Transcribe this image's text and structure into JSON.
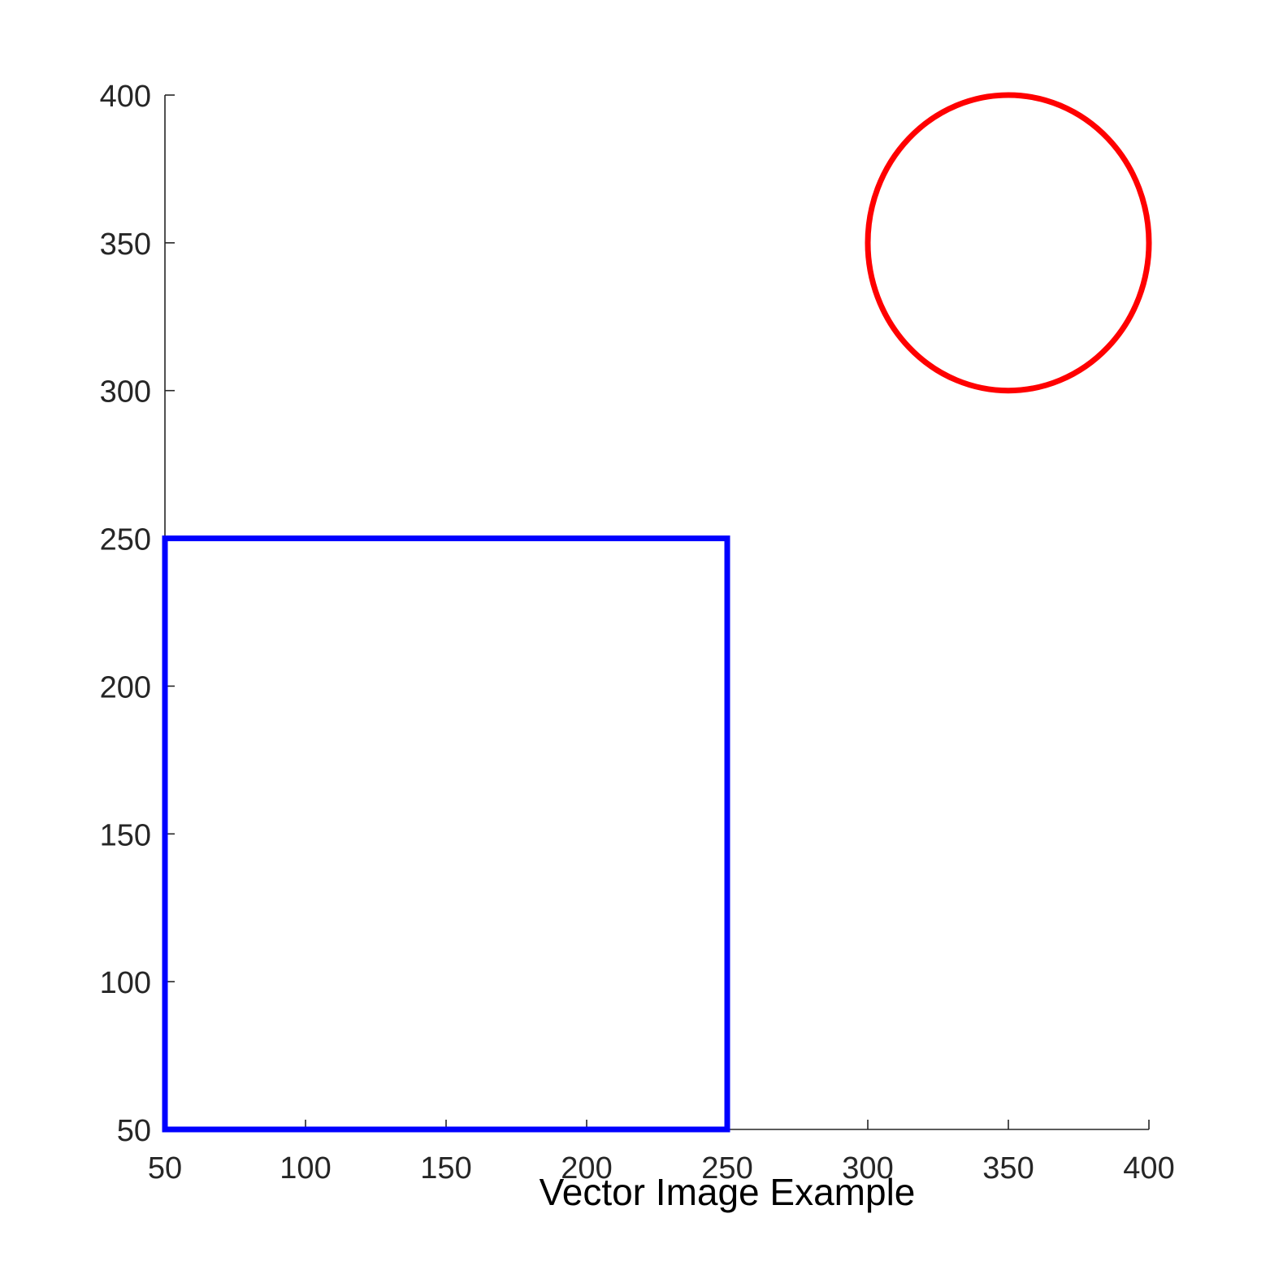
{
  "chart_data": {
    "type": "scatter",
    "title": "",
    "xlabel": "Vector Image Example",
    "ylabel": "",
    "xlim": [
      50,
      400
    ],
    "ylim": [
      50,
      400
    ],
    "x_ticks": [
      "50",
      "100",
      "150",
      "200",
      "250",
      "300",
      "350",
      "400"
    ],
    "y_ticks": [
      "50",
      "100",
      "150",
      "200",
      "250",
      "300",
      "350",
      "400"
    ],
    "grid": false,
    "axis_color": "#262626",
    "shapes": [
      {
        "kind": "rectangle",
        "x_min": 50,
        "y_min": 50,
        "x_max": 250,
        "y_max": 250,
        "color": "#0000ff"
      },
      {
        "kind": "circle",
        "center_x": 350,
        "center_y": 350,
        "radius": 50,
        "color": "#ff0000"
      }
    ]
  }
}
